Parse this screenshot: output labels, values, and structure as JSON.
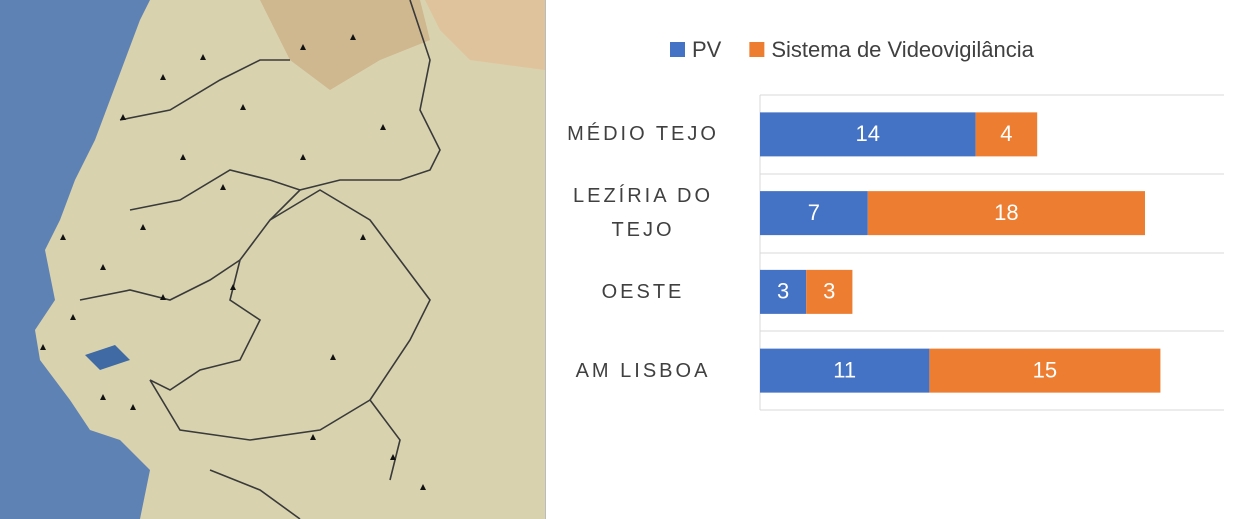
{
  "chart_data": {
    "type": "stacked-bar-horizontal",
    "categories": [
      "MÉDIO TEJO",
      "LEZÍRIA DO TEJO",
      "OESTE",
      "AM LISBOA"
    ],
    "series": [
      {
        "name": "PV",
        "color": "#4472c4",
        "values": [
          14,
          7,
          3,
          11
        ]
      },
      {
        "name": "Sistema de Videovigilância",
        "color": "#ed7d31",
        "values": [
          4,
          18,
          3,
          15
        ]
      }
    ],
    "xlim": [
      0,
      30
    ],
    "legend": "top"
  }
}
